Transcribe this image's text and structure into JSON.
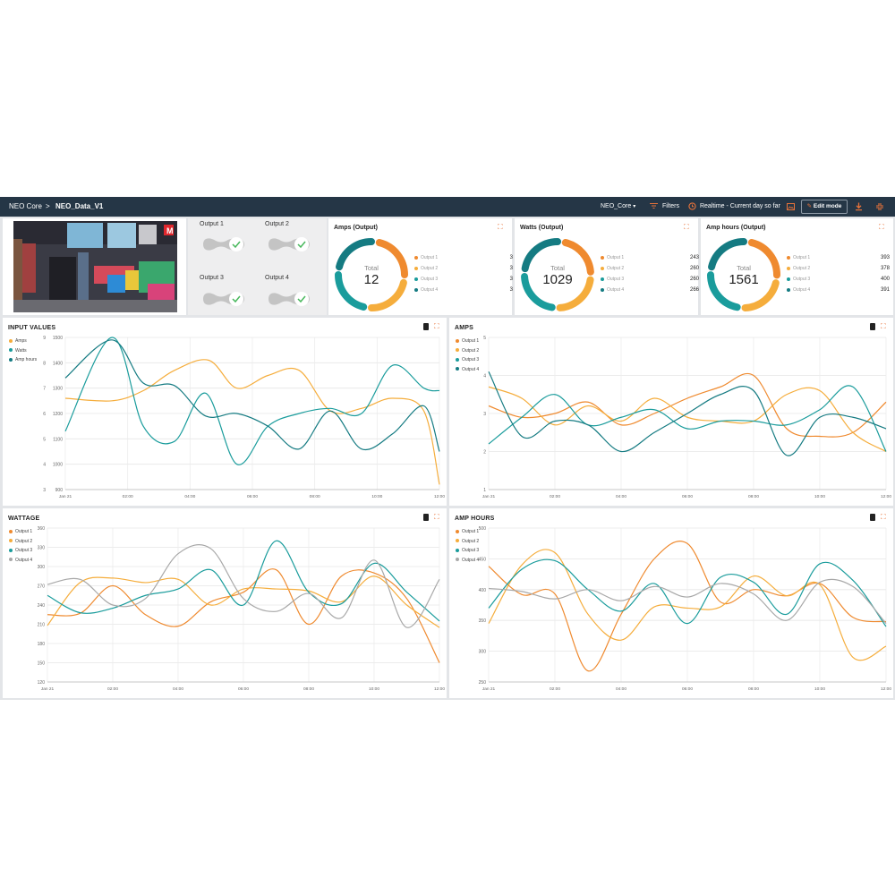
{
  "colors": {
    "orange": "#ef8a2f",
    "yellow": "#f5ad3c",
    "teal": "#1a9c9c",
    "darkteal": "#157b82",
    "gray": "#a8a8a8",
    "accent": "#e8733a",
    "topbar": "#253646"
  },
  "topbar": {
    "root": "NEO Core",
    "separator": ">",
    "current": "NEO_Data_V1",
    "dropdown": "NEO_Core",
    "filters": "Filters",
    "realtime": "Realtime - Current day so far",
    "edit_mode": "Edit mode"
  },
  "outputs": {
    "labels": [
      "Output 1",
      "Output 2",
      "Output 3",
      "Output 4"
    ]
  },
  "donuts": [
    {
      "title": "Amps (Output)",
      "total_label": "Total",
      "total": "12",
      "items": [
        {
          "label": "Output 1",
          "value": 3
        },
        {
          "label": "Output 2",
          "value": 3
        },
        {
          "label": "Output 3",
          "value": 3
        },
        {
          "label": "Output 4",
          "value": 3
        }
      ]
    },
    {
      "title": "Watts (Output)",
      "total_label": "Total",
      "total": "1029",
      "items": [
        {
          "label": "Output 1",
          "value": 243
        },
        {
          "label": "Output 2",
          "value": 260
        },
        {
          "label": "Output 3",
          "value": 260
        },
        {
          "label": "Output 4",
          "value": 266
        }
      ]
    },
    {
      "title": "Amp hours (Output)",
      "total_label": "Total",
      "total": "1561",
      "items": [
        {
          "label": "Output 1",
          "value": 393
        },
        {
          "label": "Output 2",
          "value": 378
        },
        {
          "label": "Output 3",
          "value": 400
        },
        {
          "label": "Output 4",
          "value": 391
        }
      ]
    }
  ],
  "chart_data": [
    {
      "type": "line",
      "title": "INPUT VALUES",
      "x_labels": [
        "Jan 21",
        "02:00",
        "04:00",
        "06:00",
        "08:00",
        "10:00",
        "12:00"
      ],
      "x_range": [
        0,
        12
      ],
      "y_left": {
        "ticks": [
          "3",
          "4",
          "5",
          "6",
          "7",
          "8",
          "9"
        ],
        "range": [
          3,
          9
        ]
      },
      "y_right": {
        "ticks": [
          "900",
          "1000",
          "1100",
          "1200",
          "1300",
          "1400",
          "1500"
        ],
        "range": [
          900,
          1500
        ]
      },
      "legend_position": "top-left",
      "series": [
        {
          "name": "Amps",
          "axis": "left",
          "color": "#f5ad3c",
          "x": [
            0,
            1.5,
            2.5,
            3.5,
            4.6,
            5.5,
            6.5,
            7.5,
            8.5,
            9.5,
            10.5,
            11.5,
            12
          ],
          "y": [
            6.6,
            6.5,
            6.9,
            7.7,
            8.1,
            7.0,
            7.5,
            7.7,
            6.1,
            6.2,
            6.6,
            6.1,
            3.2
          ]
        },
        {
          "name": "Watts",
          "axis": "left",
          "color": "#1a9c9c",
          "x": [
            0,
            1.5,
            2.5,
            3.5,
            4.5,
            5.5,
            6.5,
            7.5,
            8.5,
            9.5,
            10.5,
            11.5,
            12
          ],
          "y": [
            5.3,
            9.0,
            5.5,
            4.9,
            6.8,
            4.0,
            5.5,
            6.0,
            6.2,
            6.0,
            7.9,
            7.0,
            6.9
          ]
        },
        {
          "name": "Amp hours",
          "axis": "left",
          "color": "#157b82",
          "x": [
            0,
            1.5,
            2.5,
            3.5,
            4.5,
            5.5,
            6.5,
            7.5,
            8.5,
            9.5,
            10.5,
            11.5,
            12
          ],
          "y": [
            7.4,
            8.9,
            7.2,
            7.1,
            5.9,
            6.0,
            5.5,
            4.6,
            6.1,
            4.6,
            5.2,
            6.3,
            4.5
          ]
        }
      ]
    },
    {
      "type": "line",
      "title": "AMPS",
      "x_labels": [
        "Jan 21",
        "02:00",
        "04:00",
        "06:00",
        "08:00",
        "10:00",
        "12:00"
      ],
      "x_range": [
        0,
        12
      ],
      "y_left": {
        "ticks": [
          "1",
          "2",
          "3",
          "4",
          "5"
        ],
        "range": [
          1,
          5
        ]
      },
      "legend_position": "top-left",
      "series": [
        {
          "name": "Output 1",
          "color": "#ef8a2f",
          "x": [
            0,
            1,
            2,
            3,
            4,
            5,
            6,
            7,
            8,
            9,
            10,
            11,
            12
          ],
          "y": [
            3.2,
            2.9,
            3.0,
            3.3,
            2.7,
            3.0,
            3.4,
            3.7,
            4.0,
            2.6,
            2.4,
            2.5,
            3.3
          ]
        },
        {
          "name": "Output 2",
          "color": "#f5ad3c",
          "x": [
            0,
            1,
            2,
            3,
            4,
            5,
            6,
            7,
            8,
            9,
            10,
            11,
            12
          ],
          "y": [
            3.7,
            3.4,
            2.7,
            3.2,
            2.8,
            3.4,
            2.9,
            2.8,
            2.8,
            3.5,
            3.6,
            2.5,
            2.0
          ]
        },
        {
          "name": "Output 3",
          "color": "#1a9c9c",
          "x": [
            0,
            1,
            2,
            3,
            4,
            5,
            6,
            7,
            8,
            9,
            10,
            11,
            12
          ],
          "y": [
            2.2,
            2.9,
            3.5,
            2.7,
            2.9,
            3.1,
            2.6,
            2.8,
            2.8,
            2.7,
            3.1,
            3.7,
            2.0
          ]
        },
        {
          "name": "Output 4",
          "color": "#157b82",
          "x": [
            0,
            1,
            2,
            3,
            4,
            5,
            6,
            7,
            8,
            9,
            10,
            11,
            12
          ],
          "y": [
            4.1,
            2.4,
            2.8,
            2.7,
            2.0,
            2.5,
            3.0,
            3.5,
            3.6,
            1.9,
            2.9,
            2.9,
            2.6
          ]
        }
      ]
    },
    {
      "type": "line",
      "title": "WATTAGE",
      "x_labels": [
        "Jan 21",
        "02:00",
        "04:00",
        "06:00",
        "08:00",
        "10:00",
        "12:00"
      ],
      "x_range": [
        0,
        12
      ],
      "y_left": {
        "ticks": [
          "120",
          "150",
          "180",
          "210",
          "240",
          "270",
          "300",
          "330",
          "360"
        ],
        "range": [
          120,
          360
        ]
      },
      "legend_position": "top-left",
      "series": [
        {
          "name": "Output 1",
          "color": "#ef8a2f",
          "x": [
            0,
            1,
            2,
            3,
            4,
            5,
            6,
            7,
            8,
            9,
            10,
            11,
            12
          ],
          "y": [
            225,
            227,
            270,
            225,
            207,
            245,
            260,
            295,
            210,
            285,
            290,
            250,
            150
          ]
        },
        {
          "name": "Output 2",
          "color": "#f5ad3c",
          "x": [
            0,
            1,
            2,
            3,
            4,
            5,
            6,
            7,
            8,
            9,
            10,
            11,
            12
          ],
          "y": [
            208,
            275,
            282,
            275,
            280,
            240,
            265,
            265,
            262,
            245,
            285,
            240,
            205
          ]
        },
        {
          "name": "Output 3",
          "color": "#1a9c9c",
          "x": [
            0,
            1,
            2,
            3,
            4,
            5,
            6,
            7,
            8,
            9,
            10,
            11,
            12
          ],
          "y": [
            255,
            228,
            235,
            255,
            265,
            295,
            240,
            340,
            260,
            242,
            305,
            260,
            215
          ]
        },
        {
          "name": "Output 4",
          "color": "#a8a8a8",
          "x": [
            0,
            1,
            2,
            3,
            4,
            5,
            6,
            7,
            8,
            9,
            10,
            11,
            12
          ],
          "y": [
            272,
            280,
            240,
            250,
            320,
            328,
            250,
            230,
            258,
            220,
            310,
            205,
            280
          ]
        }
      ]
    },
    {
      "type": "line",
      "title": "AMP HOURS",
      "x_labels": [
        "Jan 21",
        "02:00",
        "04:00",
        "06:00",
        "08:00",
        "10:00",
        "12:00"
      ],
      "x_range": [
        0,
        12
      ],
      "y_left": {
        "ticks": [
          "250",
          "300",
          "350",
          "400",
          "450",
          "500"
        ],
        "range": [
          250,
          500
        ]
      },
      "legend_position": "top-left",
      "series": [
        {
          "name": "Output 1",
          "color": "#ef8a2f",
          "x": [
            0,
            1,
            2,
            3,
            4,
            5,
            6,
            7,
            8,
            9,
            10,
            11,
            12
          ],
          "y": [
            438,
            392,
            393,
            268,
            360,
            450,
            475,
            380,
            400,
            390,
            410,
            355,
            348
          ]
        },
        {
          "name": "Output 2",
          "color": "#f5ad3c",
          "x": [
            0,
            1,
            2,
            3,
            4,
            5,
            6,
            7,
            8,
            9,
            10,
            11,
            12
          ],
          "y": [
            345,
            440,
            460,
            360,
            318,
            372,
            370,
            372,
            422,
            390,
            408,
            290,
            308
          ]
        },
        {
          "name": "Output 3",
          "color": "#1a9c9c",
          "x": [
            0,
            1,
            2,
            3,
            4,
            5,
            6,
            7,
            8,
            9,
            10,
            11,
            12
          ],
          "y": [
            370,
            433,
            447,
            400,
            365,
            410,
            345,
            420,
            412,
            360,
            442,
            415,
            340
          ]
        },
        {
          "name": "Output 4",
          "color": "#a8a8a8",
          "x": [
            0,
            1,
            2,
            3,
            4,
            5,
            6,
            7,
            8,
            9,
            10,
            11,
            12
          ],
          "y": [
            402,
            397,
            385,
            400,
            382,
            405,
            388,
            410,
            393,
            350,
            412,
            405,
            345
          ]
        }
      ]
    }
  ]
}
